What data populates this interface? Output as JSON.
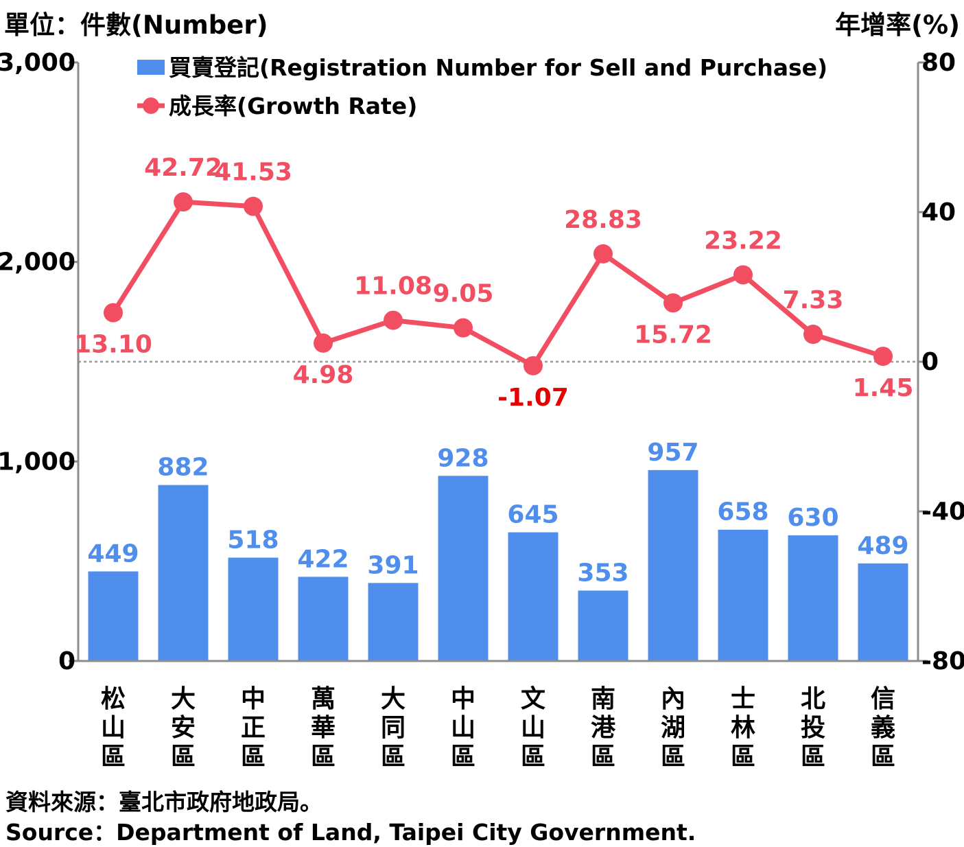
{
  "unit_left": "單位：件數(Number)",
  "unit_right": "年增率(%)",
  "source_zh": "資料來源：臺北市政府地政局。",
  "source_en": "Source：Department of Land, Taipei City Government.",
  "colors": {
    "bar": "#4F8EEC",
    "bar_label": "#4F8EEC",
    "line": "#F24E62",
    "line_label": "#F24E62",
    "negative_label": "#E60000",
    "axis": "#8c8c8c",
    "zero_line": "#999999"
  },
  "chart_data": {
    "type": "bar",
    "categories": [
      "松山區",
      "大安區",
      "中正區",
      "萬華區",
      "大同區",
      "中山區",
      "文山區",
      "南港區",
      "內湖區",
      "士林區",
      "北投區",
      "信義區"
    ],
    "series": [
      {
        "name": "買賣登記(Registration Number for Sell and Purchase)",
        "type": "bar",
        "axis": "left",
        "values": [
          449,
          882,
          518,
          422,
          391,
          928,
          645,
          353,
          957,
          658,
          630,
          489
        ],
        "labels": [
          "449",
          "882",
          "518",
          "422",
          "391",
          "928",
          "645",
          "353",
          "957",
          "658",
          "630",
          "489"
        ]
      },
      {
        "name": "成長率(Growth Rate)",
        "type": "line",
        "axis": "right",
        "values": [
          13.1,
          42.72,
          41.53,
          4.98,
          11.08,
          9.05,
          -1.07,
          28.83,
          15.72,
          23.22,
          7.33,
          1.45
        ],
        "labels": [
          "13.10",
          "42.72",
          "41.53",
          "4.98",
          "11.08",
          "9.05",
          "-1.07",
          "28.83",
          "15.72",
          "23.22",
          "7.33",
          "1.45"
        ],
        "label_position": [
          "below",
          "above",
          "above",
          "below",
          "above",
          "above",
          "below",
          "above",
          "below",
          "above",
          "above",
          "below"
        ]
      }
    ],
    "y_left": {
      "range": [
        0,
        3000
      ],
      "ticks": [
        0,
        1000,
        2000,
        3000
      ],
      "tick_labels": [
        "0",
        "1,000",
        "2,000",
        "3,000"
      ]
    },
    "y_right": {
      "range": [
        -80,
        80
      ],
      "ticks": [
        -80,
        -40,
        0,
        40,
        80
      ],
      "tick_labels": [
        "-80",
        "-40",
        "0",
        "40",
        "80"
      ]
    },
    "zero_reference_line": true,
    "grid": false,
    "legend_position": "top-left"
  }
}
